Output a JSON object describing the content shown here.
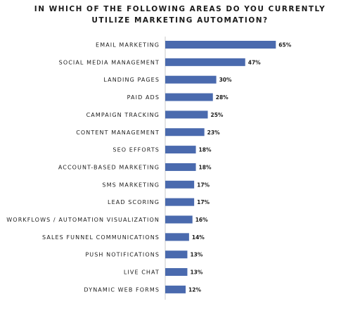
{
  "chart_data": {
    "type": "bar",
    "orientation": "horizontal",
    "title": [
      "IN WHICH OF THE FOLLOWING AREAS DO YOU CURRENTLY",
      "UTILIZE MARKETING AUTOMATION?"
    ],
    "categories": [
      "EMAIL MARKETING",
      "SOCIAL MEDIA MANAGEMENT",
      "LANDING PAGES",
      "PAID ADS",
      "CAMPAIGN TRACKING",
      "CONTENT MANAGEMENT",
      "SEO EFFORTS",
      "ACCOUNT-BASED MARKETING",
      "SMS MARKETING",
      "LEAD SCORING",
      "WORKFLOWS / AUTOMATION VISUALIZATION",
      "SALES FUNNEL COMMUNICATIONS",
      "PUSH NOTIFICATIONS",
      "LIVE CHAT",
      "DYNAMIC WEB FORMS"
    ],
    "values": [
      65,
      47,
      30,
      28,
      25,
      23,
      18,
      18,
      17,
      17,
      16,
      14,
      13,
      13,
      12
    ],
    "data_labels": [
      "65%",
      "47%",
      "30%",
      "28%",
      "25%",
      "23%",
      "18%",
      "18%",
      "17%",
      "17%",
      "16%",
      "14%",
      "13%",
      "13%",
      "12%"
    ],
    "unit": "%",
    "xlim": [
      0,
      100
    ],
    "grid": false,
    "bar_color": "#4a6aae",
    "axis_color": "#c8c8c8"
  }
}
